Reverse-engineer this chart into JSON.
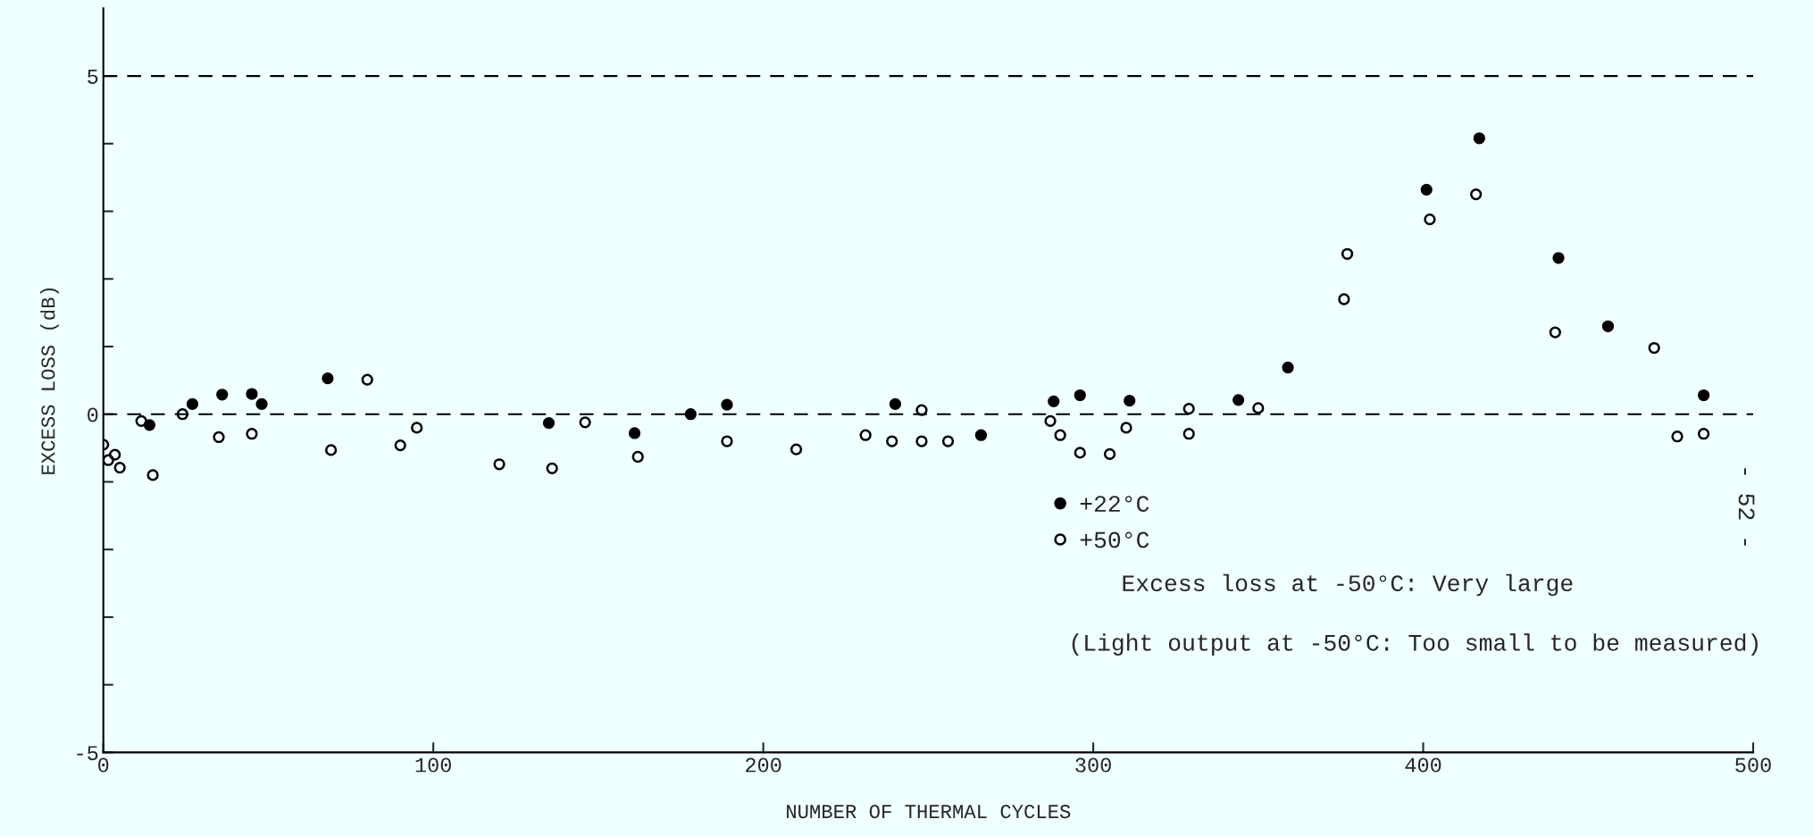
{
  "chart_data": {
    "type": "scatter",
    "xlabel": "NUMBER OF THERMAL CYCLES",
    "ylabel": "EXCESS LOSS (dB)",
    "xlim": [
      0,
      500
    ],
    "xticks": [
      0,
      100,
      200,
      300,
      400,
      500
    ],
    "ylim": [
      -5,
      6
    ],
    "yticks": [
      -5,
      {
        "value": -4,
        "label": null
      },
      {
        "value": -3,
        "label": null
      },
      {
        "value": -2,
        "label": null
      },
      {
        "value": -1,
        "label": null
      },
      0,
      {
        "value": 1,
        "label": null
      },
      {
        "value": 2,
        "label": null
      },
      {
        "value": 3,
        "label": null
      },
      {
        "value": 4,
        "label": null
      },
      5
    ],
    "grid": false,
    "legend": "bottom",
    "marker": "circle",
    "series": [
      {
        "name": "+22°C",
        "color": "#000000",
        "x": [
          14,
          27,
          36,
          45,
          48,
          68,
          135,
          161,
          178,
          189,
          240,
          266,
          288,
          296,
          311,
          344,
          359,
          401,
          417,
          441,
          456,
          485
        ],
        "values": [
          -0.16,
          0.15,
          0.29,
          0.3,
          0.15,
          0.53,
          -0.13,
          -0.28,
          0.0,
          0.14,
          0.15,
          -0.31,
          0.19,
          0.28,
          0.2,
          0.21,
          0.69,
          3.32,
          4.08,
          2.31,
          1.3,
          0.28
        ]
      },
      {
        "name": "+50°C",
        "color": "#000000",
        "x": [
          0,
          1.5,
          3.5,
          5,
          11.5,
          15,
          24,
          35,
          45,
          69,
          80,
          90,
          95,
          120,
          136,
          146,
          162,
          189,
          210,
          231,
          239,
          248,
          248,
          256,
          287,
          290,
          296,
          305,
          310,
          329,
          329,
          350,
          377,
          376,
          402,
          416,
          440,
          470,
          477,
          485
        ],
        "values": [
          -0.45,
          -0.68,
          -0.6,
          -0.79,
          -0.1,
          -0.9,
          0.0,
          -0.34,
          -0.29,
          -0.53,
          0.51,
          -0.46,
          -0.2,
          -0.74,
          -0.8,
          -0.12,
          -0.63,
          -0.4,
          -0.52,
          -0.31,
          -0.4,
          0.06,
          -0.4,
          -0.4,
          -0.1,
          -0.31,
          -0.57,
          -0.59,
          -0.2,
          0.08,
          -0.29,
          0.09,
          2.37,
          1.7,
          2.88,
          3.25,
          1.21,
          0.98,
          -0.33,
          -0.29
        ]
      }
    ],
    "ref_lines": [
      {
        "axis": "y",
        "value": 5,
        "color": "#000000",
        "line_style": "dashed"
      },
      {
        "axis": "y",
        "value": 0,
        "color": "#000000",
        "line_style": "dashed"
      }
    ],
    "annotations": [
      "Excess loss at -50°C: Very large",
      "(Light output at -50°C: Too small to be measured)",
      "- 52 -"
    ]
  }
}
